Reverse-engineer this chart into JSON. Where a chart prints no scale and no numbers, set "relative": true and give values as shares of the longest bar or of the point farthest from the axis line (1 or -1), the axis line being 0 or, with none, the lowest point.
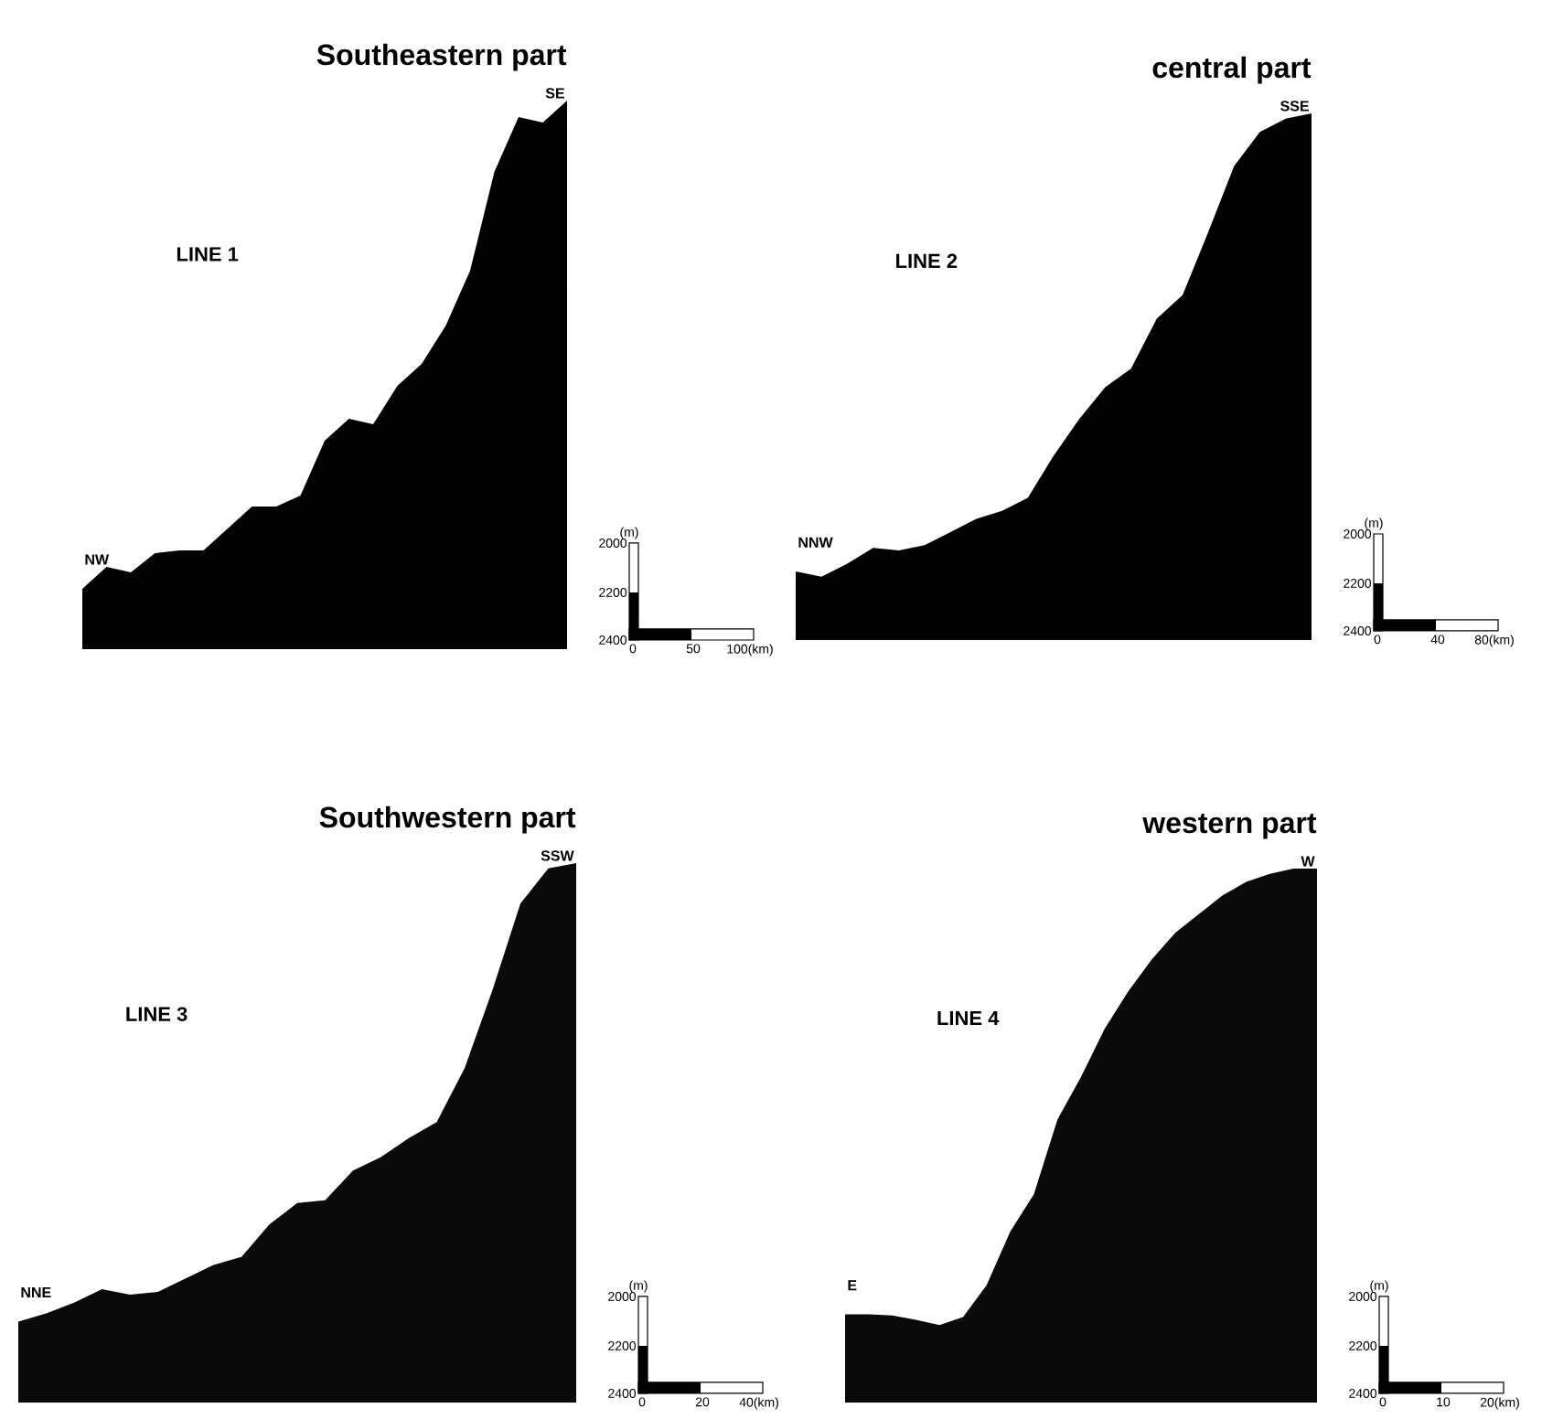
{
  "chart_data": [
    {
      "type": "area",
      "title": "Southeastern part",
      "relative": true,
      "color": "#000000",
      "categories": [
        null,
        null,
        null,
        null,
        null,
        null,
        null,
        null,
        null,
        null,
        null,
        null,
        null,
        null,
        null,
        null,
        null,
        null,
        null,
        null,
        null
      ],
      "values": [
        0.11,
        0.15,
        0.14,
        0.175,
        0.18,
        0.18,
        0.22,
        0.26,
        0.26,
        0.28,
        0.38,
        0.42,
        0.41,
        0.48,
        0.52,
        0.59,
        0.69,
        0.87,
        0.97,
        0.96,
        1.0
      ],
      "annotations": [
        "LINE 1",
        "NW",
        "SE",
        "(m)",
        "2000",
        "2200",
        "2400",
        "0",
        "50",
        "100(km)"
      ]
    },
    {
      "type": "area",
      "title": "central part",
      "relative": true,
      "color": "#000000",
      "categories": [
        null,
        null,
        null,
        null,
        null,
        null,
        null,
        null,
        null,
        null,
        null,
        null,
        null,
        null,
        null,
        null,
        null,
        null,
        null,
        null,
        null
      ],
      "values": [
        0.13,
        0.12,
        0.145,
        0.175,
        0.17,
        0.18,
        0.205,
        0.23,
        0.245,
        0.27,
        0.35,
        0.42,
        0.48,
        0.515,
        0.61,
        0.655,
        0.775,
        0.9,
        0.965,
        0.99,
        1.0
      ],
      "annotations": [
        "LINE 2",
        "NNW",
        "SSE",
        "(m)",
        "2000",
        "2200",
        "2400",
        "0",
        "40",
        "80(km)"
      ]
    },
    {
      "type": "area",
      "title": "Southwestern part",
      "relative": true,
      "color": "#0a0a0a",
      "categories": [
        null,
        null,
        null,
        null,
        null,
        null,
        null,
        null,
        null,
        null,
        null,
        null,
        null,
        null,
        null,
        null,
        null,
        null,
        null,
        null,
        null
      ],
      "values": [
        0.15,
        0.165,
        0.185,
        0.21,
        0.2,
        0.205,
        0.23,
        0.255,
        0.27,
        0.33,
        0.37,
        0.375,
        0.43,
        0.455,
        0.49,
        0.52,
        0.62,
        0.765,
        0.925,
        0.99,
        1.0
      ],
      "annotations": [
        "LINE 3",
        "NNE",
        "SSW",
        "(m)",
        "2000",
        "2200",
        "2400",
        "0",
        "20",
        "40(km)"
      ]
    },
    {
      "type": "area",
      "title": "western part",
      "relative": true,
      "color": "#0a0a0a",
      "categories": [
        null,
        null,
        null,
        null,
        null,
        null,
        null,
        null,
        null,
        null,
        null,
        null,
        null,
        null,
        null,
        null,
        null,
        null,
        null,
        null,
        null
      ],
      "values": [
        0.165,
        0.165,
        0.163,
        0.155,
        0.145,
        0.16,
        0.22,
        0.32,
        0.39,
        0.53,
        0.61,
        0.7,
        0.77,
        0.83,
        0.88,
        0.915,
        0.95,
        0.975,
        0.99,
        1.0,
        1.0
      ],
      "annotations": [
        "LINE 4",
        "E",
        "W",
        "(m)",
        "2000",
        "2200",
        "2400",
        "0",
        "10",
        "20(km)"
      ]
    }
  ]
}
